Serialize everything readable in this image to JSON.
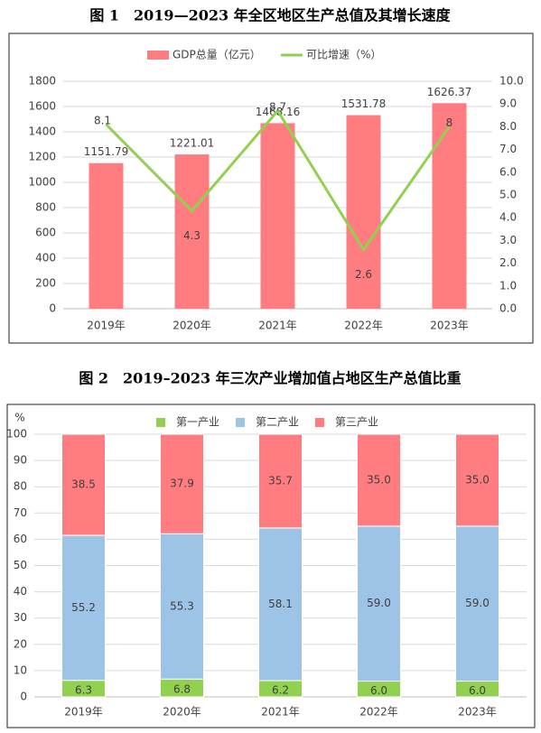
{
  "chart_data": [
    {
      "type": "bar-line",
      "title": "图 1　2019—2023 年全区地区生产总值及其增长速度",
      "categories": [
        "2019年",
        "2020年",
        "2021年",
        "2022年",
        "2023年"
      ],
      "series": [
        {
          "name": "GDP总量（亿元）",
          "color": "#ff7c80",
          "type": "bar",
          "values": [
            1151.79,
            1221.01,
            1468.16,
            1531.78,
            1626.37
          ]
        },
        {
          "name": "可比增速（%）",
          "color": "#92d050",
          "type": "line",
          "axis": "y2",
          "values": [
            8.1,
            4.3,
            8.7,
            2.6,
            8
          ]
        }
      ],
      "ylim": [
        0,
        1800
      ],
      "yticks": [
        0,
        200,
        400,
        600,
        800,
        1000,
        1200,
        1400,
        1600,
        1800
      ],
      "y2lim": [
        0,
        10
      ],
      "y2ticks": [
        {
          "value": 0,
          "label": "0.0"
        },
        {
          "value": 1,
          "label": "1.0"
        },
        {
          "value": 2,
          "label": "2.0"
        },
        {
          "value": 3,
          "label": "3.0"
        },
        {
          "value": 4,
          "label": "4.0"
        },
        {
          "value": 5,
          "label": "5.0"
        },
        {
          "value": 6,
          "label": "6.0"
        },
        {
          "value": 7,
          "label": "7.0"
        },
        {
          "value": 8,
          "label": "8.0"
        },
        {
          "value": 9,
          "label": "9.0"
        },
        {
          "value": 10,
          "label": "10.0"
        }
      ],
      "legend": "top"
    },
    {
      "type": "stacked-bar",
      "title": "图 2　2019–2023 年三次产业增加值占地区生产总值比重",
      "y_label": "%",
      "categories": [
        "2019年",
        "2020年",
        "2021年",
        "2022年",
        "2023年"
      ],
      "series": [
        {
          "name": "第一产业",
          "color": "#92d050",
          "values": [
            6.3,
            6.8,
            6.2,
            6,
            6
          ],
          "value_labels": [
            "6.3",
            "6.8",
            "6.2",
            "6.0",
            "6.0"
          ]
        },
        {
          "name": "第二产业",
          "color": "#9dc3e6",
          "values": [
            55.2,
            55.3,
            58.1,
            59,
            59
          ],
          "value_labels": [
            "55.2",
            "55.3",
            "58.1",
            "59.0",
            "59.0"
          ]
        },
        {
          "name": "第三产业",
          "color": "#ff7c80",
          "values": [
            38.5,
            37.9,
            35.7,
            35,
            35
          ],
          "value_labels": [
            "38.5",
            "37.9",
            "35.7",
            "35.0",
            "35.0"
          ]
        }
      ],
      "ylim": [
        0,
        100
      ],
      "yticks": [
        0,
        10,
        20,
        30,
        40,
        50,
        60,
        70,
        80,
        90,
        100
      ],
      "legend": "top"
    }
  ]
}
